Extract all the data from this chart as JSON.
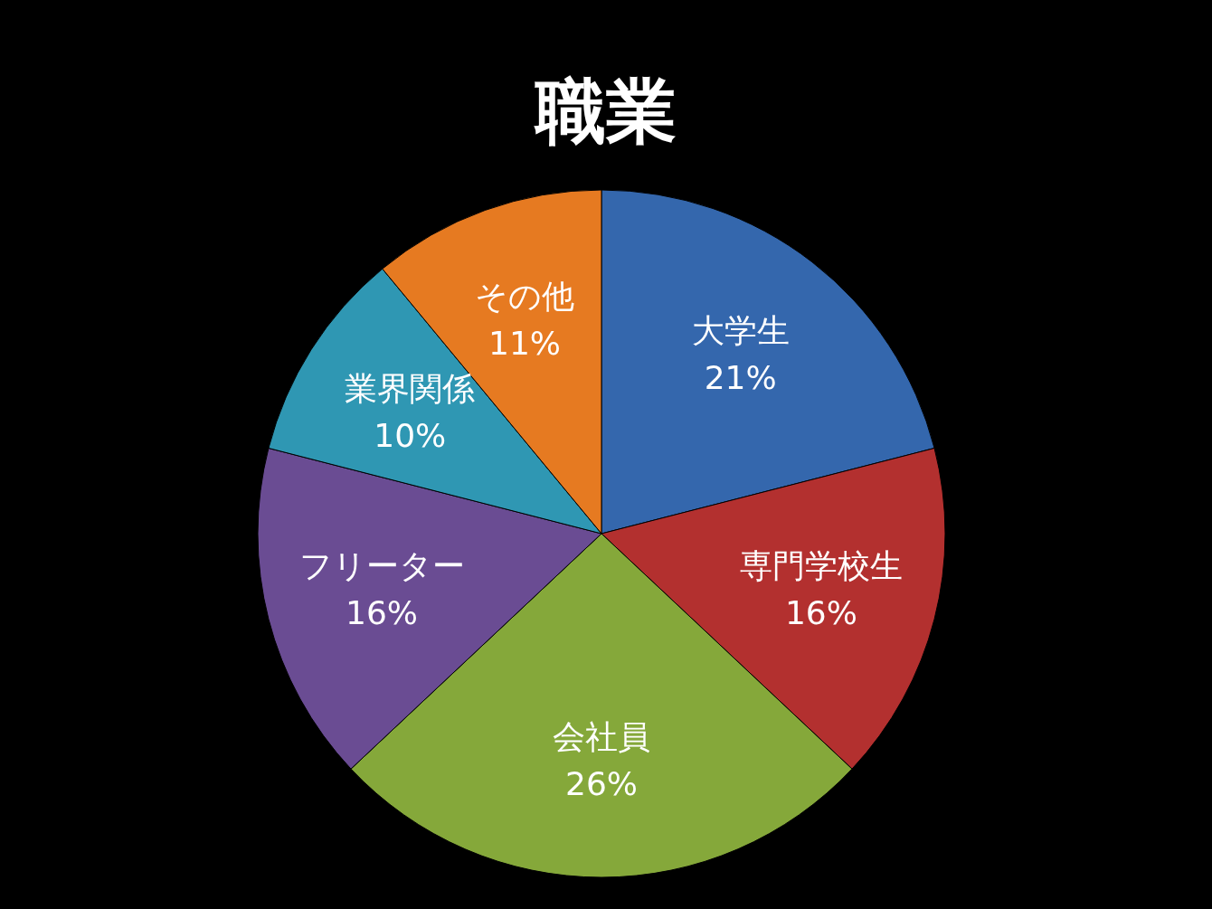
{
  "chart_data": {
    "type": "pie",
    "title": "職業",
    "categories": [
      "大学生",
      "専門学校生",
      "会社員",
      "フリーター",
      "業界関係",
      "その他"
    ],
    "values": [
      21,
      16,
      26,
      16,
      10,
      11
    ],
    "value_labels": [
      "21%",
      "16%",
      "26%",
      "16%",
      "10%",
      "11%"
    ],
    "colors": [
      "#3467ad",
      "#b3302f",
      "#85a83a",
      "#6a4c93",
      "#2f97b3",
      "#e67a21"
    ],
    "legend": false
  }
}
